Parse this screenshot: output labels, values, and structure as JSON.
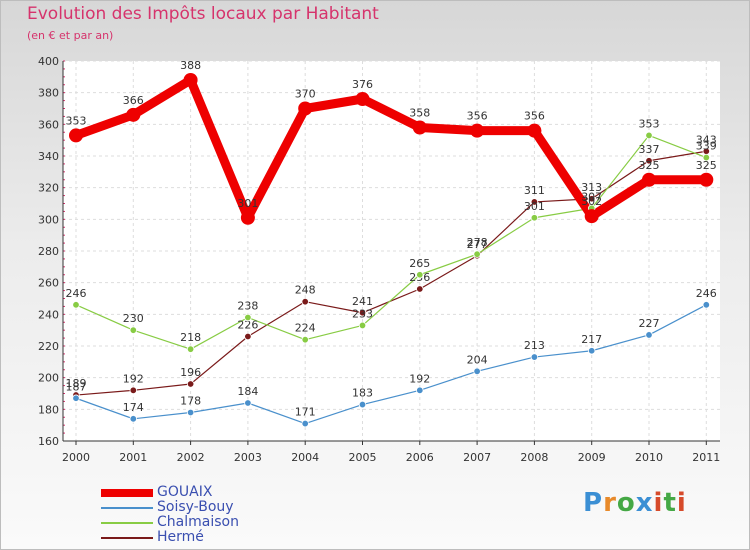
{
  "header": {
    "title": "Evolution des Impôts locaux par Habitant",
    "subtitle": "(en € et par an)"
  },
  "logo": {
    "text": "Proxiti",
    "colors": [
      "#3b8fd4",
      "#e88a2a",
      "#45a845",
      "#d64a2a"
    ]
  },
  "chart_data": {
    "type": "line",
    "title": "Evolution des Impôts locaux par Habitant",
    "subtitle": "(en € et par an)",
    "xlabel": "",
    "ylabel": "",
    "categories": [
      "2000",
      "2001",
      "2002",
      "2003",
      "2004",
      "2005",
      "2006",
      "2007",
      "2008",
      "2009",
      "2010",
      "2011"
    ],
    "yticks": [
      160,
      180,
      200,
      220,
      240,
      260,
      280,
      300,
      320,
      340,
      360,
      380,
      400
    ],
    "ylim": [
      160,
      400
    ],
    "grid": true,
    "legend_position": "bottom-left",
    "series": [
      {
        "name": "GOUAIX",
        "color": "#ee0000",
        "values": [
          353,
          366,
          388,
          301,
          370,
          376,
          358,
          356,
          356,
          302,
          325,
          325
        ]
      },
      {
        "name": "Soisy-Bouy",
        "color": "#4a90cc",
        "values": [
          187,
          174,
          178,
          184,
          171,
          183,
          192,
          204,
          213,
          217,
          227,
          246
        ]
      },
      {
        "name": "Chalmaison",
        "color": "#88cc44",
        "values": [
          246,
          230,
          218,
          238,
          224,
          233,
          265,
          278,
          301,
          307,
          353,
          339
        ]
      },
      {
        "name": "Hermé",
        "color": "#7a1a1a",
        "values": [
          189,
          192,
          196,
          226,
          248,
          241,
          256,
          277,
          311,
          313,
          337,
          343
        ]
      }
    ]
  }
}
